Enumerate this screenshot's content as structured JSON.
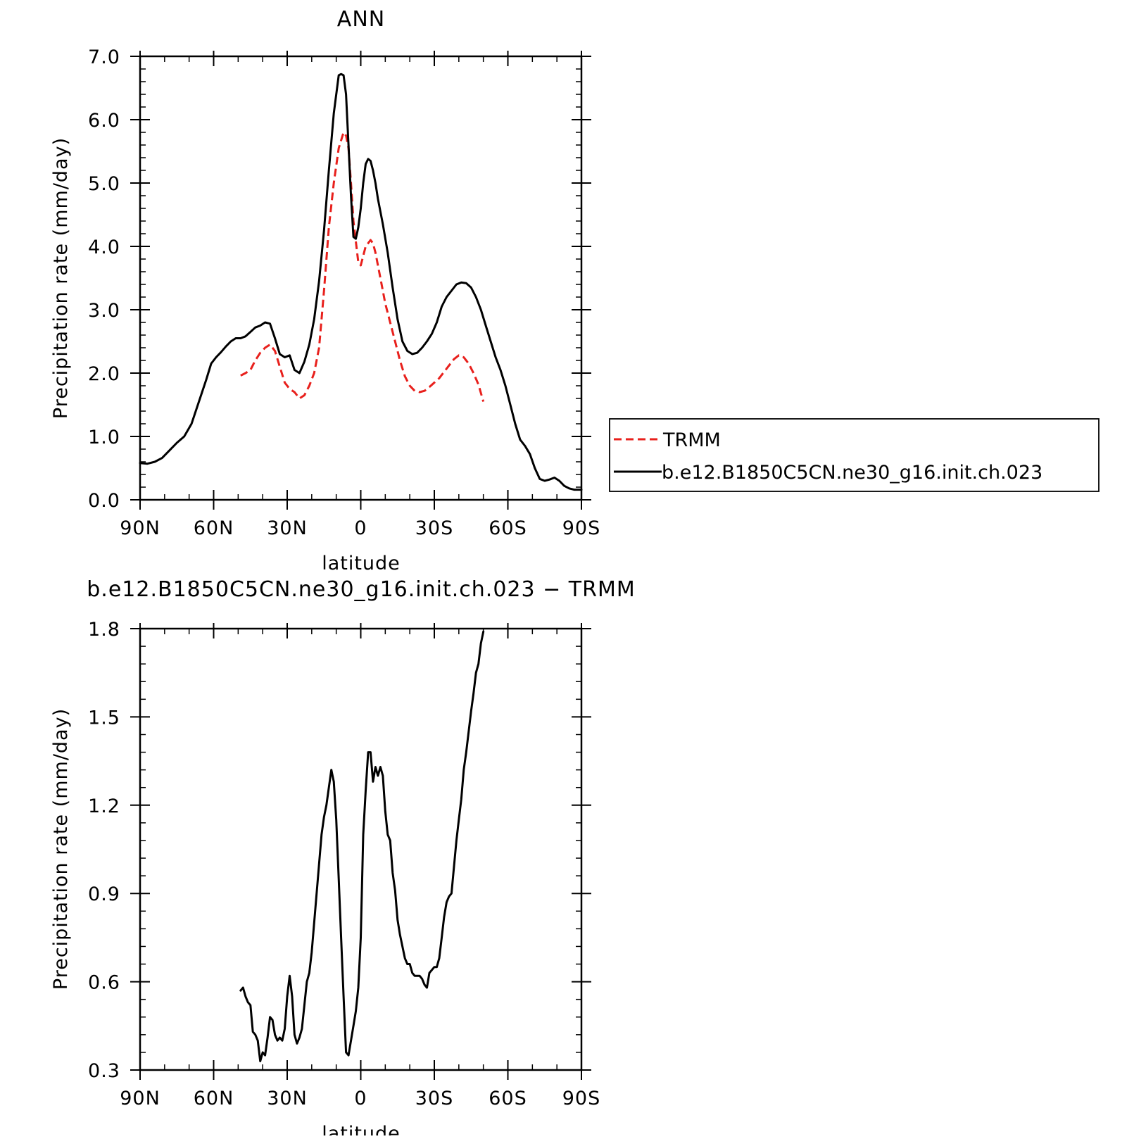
{
  "colors": {
    "trmm": "#e8201c",
    "model": "#000000"
  },
  "chart_data": [
    {
      "type": "line",
      "title": "ANN",
      "xlabel": "latitude",
      "ylabel": "Precipitation rate (mm/day)",
      "xlim": [
        90,
        -90
      ],
      "ylim": [
        0,
        7
      ],
      "x_ticks": [
        {
          "value": 90,
          "label": "90N"
        },
        {
          "value": 60,
          "label": "60N"
        },
        {
          "value": 30,
          "label": "30N"
        },
        {
          "value": 0,
          "label": "0"
        },
        {
          "value": -30,
          "label": "30S"
        },
        {
          "value": -60,
          "label": "60S"
        },
        {
          "value": -90,
          "label": "90S"
        }
      ],
      "y_ticks": [
        {
          "value": 0,
          "label": "0.0"
        },
        {
          "value": 1,
          "label": "1.0"
        },
        {
          "value": 2,
          "label": "2.0"
        },
        {
          "value": 3,
          "label": "3.0"
        },
        {
          "value": 4,
          "label": "4.0"
        },
        {
          "value": 5,
          "label": "5.0"
        },
        {
          "value": 6,
          "label": "6.0"
        },
        {
          "value": 7,
          "label": "7.0"
        }
      ],
      "grid": false,
      "legend": {
        "placement": "right",
        "entries": [
          "TRMM",
          "b.e12.B1850C5CN.ne30_g16.init.ch.023"
        ]
      },
      "series": [
        {
          "name": "TRMM",
          "style": "dashed",
          "x": [
            49,
            47,
            45,
            43,
            41,
            39,
            37,
            35,
            33,
            31,
            29,
            27,
            25,
            23,
            21,
            19,
            17,
            15,
            13,
            11,
            9,
            7,
            6,
            5,
            4,
            3,
            1,
            0,
            -1,
            -2,
            -3,
            -4,
            -5,
            -6,
            -8,
            -10,
            -12,
            -14,
            -16,
            -18,
            -20,
            -22,
            -24,
            -26,
            -28,
            -30,
            -32,
            -34,
            -36,
            -38,
            -40,
            -42,
            -44,
            -46,
            -48,
            -50
          ],
          "y": [
            1.96,
            2.0,
            2.05,
            2.2,
            2.32,
            2.4,
            2.45,
            2.35,
            2.1,
            1.85,
            1.75,
            1.7,
            1.6,
            1.65,
            1.8,
            2.0,
            2.4,
            3.3,
            4.3,
            5.0,
            5.55,
            5.8,
            5.75,
            5.55,
            5.0,
            4.4,
            3.75,
            3.7,
            3.85,
            4.0,
            4.05,
            4.1,
            4.05,
            3.9,
            3.5,
            3.1,
            2.8,
            2.5,
            2.2,
            1.95,
            1.8,
            1.72,
            1.7,
            1.72,
            1.78,
            1.85,
            1.92,
            2.02,
            2.12,
            2.22,
            2.28,
            2.25,
            2.15,
            2.0,
            1.82,
            1.55
          ]
        },
        {
          "name": "b.e12.B1850C5CN.ne30_g16.init.ch.023",
          "style": "solid",
          "x": [
            90,
            87,
            84,
            81,
            78,
            75,
            72,
            69,
            66,
            63,
            61,
            59,
            57,
            55,
            53,
            51,
            49,
            47,
            45,
            43,
            41,
            39,
            37,
            35,
            33,
            31,
            29,
            27,
            25,
            23,
            21,
            19,
            17,
            15,
            13,
            11,
            9,
            8,
            7,
            6,
            5,
            4,
            3,
            2,
            1,
            0,
            -1,
            -2,
            -3,
            -4,
            -5,
            -6,
            -7,
            -9,
            -11,
            -13,
            -15,
            -17,
            -19,
            -21,
            -23,
            -25,
            -27,
            -29,
            -31,
            -33,
            -35,
            -37,
            -39,
            -41,
            -43,
            -45,
            -47,
            -49,
            -51,
            -53,
            -55,
            -57,
            -59,
            -61,
            -63,
            -65,
            -67,
            -69,
            -71,
            -73,
            -75,
            -77,
            -79,
            -81,
            -83,
            -85,
            -87,
            -89,
            -90
          ],
          "y": [
            0.58,
            0.57,
            0.6,
            0.66,
            0.78,
            0.9,
            1.0,
            1.2,
            1.55,
            1.9,
            2.15,
            2.25,
            2.33,
            2.42,
            2.5,
            2.55,
            2.55,
            2.58,
            2.65,
            2.72,
            2.75,
            2.8,
            2.78,
            2.55,
            2.3,
            2.25,
            2.28,
            2.05,
            2.0,
            2.18,
            2.45,
            2.85,
            3.45,
            4.25,
            5.2,
            6.1,
            6.7,
            6.72,
            6.7,
            6.4,
            5.6,
            4.8,
            4.15,
            4.12,
            4.3,
            4.6,
            5.0,
            5.3,
            5.38,
            5.35,
            5.2,
            5.0,
            4.75,
            4.35,
            3.9,
            3.35,
            2.85,
            2.5,
            2.35,
            2.3,
            2.32,
            2.4,
            2.5,
            2.62,
            2.8,
            3.05,
            3.2,
            3.3,
            3.4,
            3.43,
            3.42,
            3.35,
            3.2,
            3.0,
            2.75,
            2.5,
            2.25,
            2.05,
            1.8,
            1.5,
            1.2,
            0.95,
            0.85,
            0.72,
            0.5,
            0.33,
            0.3,
            0.32,
            0.35,
            0.3,
            0.22,
            0.18,
            0.16,
            0.16,
            0.16
          ]
        }
      ]
    },
    {
      "type": "line",
      "title": "b.e12.B1850C5CN.ne30_g16.init.ch.023 − TRMM",
      "xlabel": "latitude",
      "ylabel": "Precipitation rate (mm/day)",
      "xlim": [
        90,
        -90
      ],
      "ylim": [
        0.3,
        1.8
      ],
      "x_ticks": [
        {
          "value": 90,
          "label": "90N"
        },
        {
          "value": 60,
          "label": "60N"
        },
        {
          "value": 30,
          "label": "30N"
        },
        {
          "value": 0,
          "label": "0"
        },
        {
          "value": -30,
          "label": "30S"
        },
        {
          "value": -60,
          "label": "60S"
        },
        {
          "value": -90,
          "label": "90S"
        }
      ],
      "y_ticks": [
        {
          "value": 0.3,
          "label": "0.3"
        },
        {
          "value": 0.6,
          "label": "0.6"
        },
        {
          "value": 0.9,
          "label": "0.9"
        },
        {
          "value": 1.2,
          "label": "1.2"
        },
        {
          "value": 1.5,
          "label": "1.5"
        },
        {
          "value": 1.8,
          "label": "1.8"
        }
      ],
      "grid": false,
      "series": [
        {
          "style": "solid",
          "x": [
            49,
            48,
            47,
            46,
            45,
            44,
            43,
            42,
            41,
            40,
            39,
            38,
            37,
            36,
            35,
            34,
            33,
            32,
            31,
            30,
            29,
            28,
            27,
            26,
            25,
            24,
            23,
            22,
            21,
            20,
            19,
            18,
            17,
            16,
            15,
            14,
            13,
            12,
            11,
            10,
            9,
            8,
            7,
            6,
            5,
            4,
            3,
            2,
            1,
            0,
            -1,
            -2,
            -3,
            -4,
            -5,
            -6,
            -7,
            -8,
            -9,
            -10,
            -11,
            -12,
            -13,
            -14,
            -15,
            -16,
            -17,
            -18,
            -19,
            -20,
            -21,
            -22,
            -23,
            -24,
            -25,
            -26,
            -27,
            -28,
            -29,
            -30,
            -31,
            -32,
            -33,
            -34,
            -35,
            -36,
            -37,
            -38,
            -39,
            -40,
            -41,
            -42,
            -43,
            -44,
            -45,
            -46,
            -47,
            -48,
            -49,
            -50
          ],
          "y": [
            0.57,
            0.58,
            0.55,
            0.53,
            0.52,
            0.43,
            0.42,
            0.4,
            0.33,
            0.36,
            0.35,
            0.41,
            0.48,
            0.47,
            0.42,
            0.4,
            0.41,
            0.4,
            0.44,
            0.55,
            0.62,
            0.55,
            0.42,
            0.39,
            0.41,
            0.44,
            0.52,
            0.6,
            0.63,
            0.7,
            0.8,
            0.9,
            1.0,
            1.1,
            1.16,
            1.2,
            1.26,
            1.32,
            1.28,
            1.15,
            0.95,
            0.75,
            0.55,
            0.36,
            0.35,
            0.4,
            0.45,
            0.5,
            0.58,
            0.75,
            1.1,
            1.25,
            1.38,
            1.38,
            1.28,
            1.33,
            1.3,
            1.33,
            1.3,
            1.18,
            1.1,
            1.08,
            0.97,
            0.91,
            0.81,
            0.76,
            0.72,
            0.68,
            0.66,
            0.66,
            0.63,
            0.62,
            0.62,
            0.62,
            0.61,
            0.59,
            0.58,
            0.63,
            0.64,
            0.65,
            0.65,
            0.68,
            0.75,
            0.82,
            0.87,
            0.89,
            0.9,
            0.99,
            1.08,
            1.15,
            1.22,
            1.32,
            1.38,
            1.45,
            1.52,
            1.58,
            1.65,
            1.68,
            1.75,
            1.79
          ]
        }
      ]
    }
  ]
}
